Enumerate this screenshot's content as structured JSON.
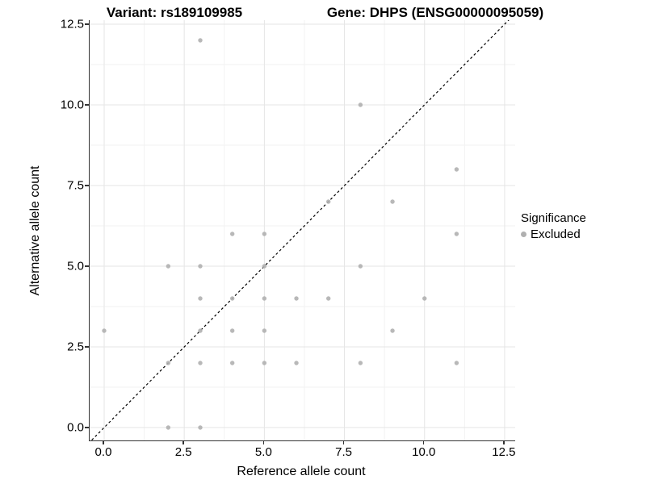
{
  "titles": {
    "left": "Variant: rs189109985",
    "right": "Gene: DHPS (ENSG00000095059)"
  },
  "axes": {
    "x": {
      "label": "Reference allele count",
      "tick_labels": [
        "0.0",
        "2.5",
        "5.0",
        "7.5",
        "10.0",
        "12.5"
      ],
      "tick_values": [
        0,
        2.5,
        5,
        7.5,
        10,
        12.5
      ],
      "minor_values": [
        1.25,
        3.75,
        6.25,
        8.75,
        11.25
      ],
      "range": [
        -0.4536,
        12.8297
      ]
    },
    "y": {
      "label": "Alternative allele count",
      "tick_labels": [
        "0.0",
        "2.5",
        "5.0",
        "7.5",
        "10.0",
        "12.5"
      ],
      "tick_values": [
        0,
        2.5,
        5,
        7.5,
        10,
        12.5
      ],
      "minor_values": [
        1.25,
        3.75,
        6.25,
        8.75,
        11.25
      ],
      "range": [
        -0.4,
        12.625
      ]
    }
  },
  "legend": {
    "title": "Significance",
    "items": [
      {
        "label": "Excluded",
        "color": "#b0b0b0"
      }
    ]
  },
  "chart_data": {
    "type": "scatter",
    "title_left": "Variant: rs189109985",
    "title_right": "Gene: DHPS (ENSG00000095059)",
    "xlabel": "Reference allele count",
    "ylabel": "Alternative allele count",
    "xlim": [
      -0.45,
      12.83
    ],
    "ylim": [
      -0.4,
      12.63
    ],
    "grid": "on",
    "legend_position": "right",
    "reference_line": {
      "type": "diagonal",
      "equation": "y = x",
      "style": "dashed",
      "color": "#000000"
    },
    "series": [
      {
        "name": "Excluded",
        "color": "#b0b0b0",
        "points": [
          [
            0,
            3
          ],
          [
            2,
            0
          ],
          [
            2,
            2
          ],
          [
            2,
            5
          ],
          [
            3,
            0
          ],
          [
            3,
            2
          ],
          [
            3,
            3
          ],
          [
            3,
            4
          ],
          [
            3,
            5
          ],
          [
            3,
            12
          ],
          [
            4,
            2
          ],
          [
            4,
            3
          ],
          [
            4,
            4
          ],
          [
            4,
            6
          ],
          [
            5,
            2
          ],
          [
            5,
            3
          ],
          [
            5,
            4
          ],
          [
            5,
            5
          ],
          [
            5,
            6
          ],
          [
            6,
            2
          ],
          [
            6,
            4
          ],
          [
            7,
            4
          ],
          [
            7,
            7
          ],
          [
            8,
            2
          ],
          [
            8,
            5
          ],
          [
            8,
            10
          ],
          [
            9,
            3
          ],
          [
            9,
            7
          ],
          [
            10,
            4
          ],
          [
            11,
            2
          ],
          [
            11,
            6
          ],
          [
            11,
            8
          ]
        ]
      }
    ]
  },
  "colors": {
    "point": "#b0b0b0",
    "major_grid": "#e5e5e5",
    "minor_grid": "#f2f2f2",
    "axis_line": "#333333",
    "text": "#000000",
    "background": "#ffffff"
  }
}
